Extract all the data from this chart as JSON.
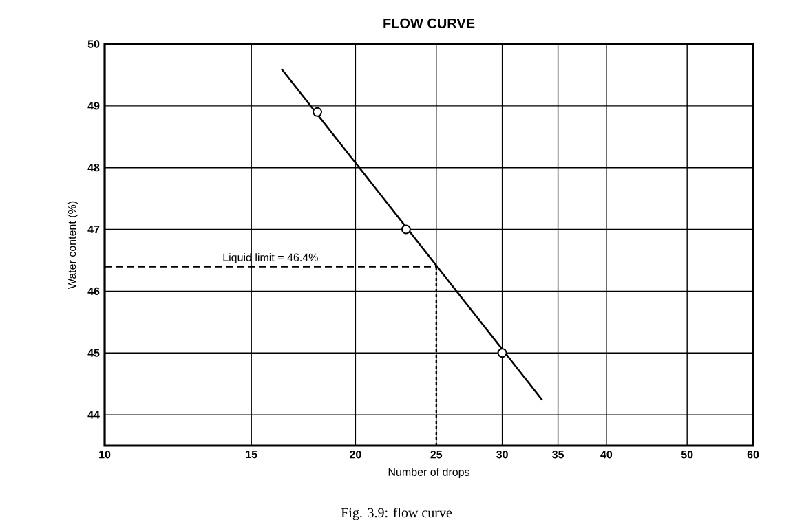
{
  "chart_data": {
    "type": "scatter",
    "title": "FLOW CURVE",
    "xlabel": "Number of drops",
    "ylabel": "Water content (%)",
    "log": "x",
    "xlim": [
      10,
      60
    ],
    "xticks": [
      10,
      15,
      20,
      25,
      30,
      35,
      40,
      50,
      60
    ],
    "ylim": [
      43.5,
      50
    ],
    "yticks": [
      44,
      45,
      46,
      47,
      48,
      49,
      50
    ],
    "grid": true,
    "series": [
      {
        "type": "line",
        "x": [
          16.3,
          33.5
        ],
        "values": [
          49.6,
          44.24
        ],
        "color": "#000000"
      },
      {
        "x": [
          18,
          23,
          30
        ],
        "values": [
          48.9,
          47,
          45
        ],
        "color": "#000000",
        "marker": "circle"
      }
    ],
    "ref_lines": [
      {
        "axis": "y",
        "value": 46.4,
        "label": "Liquid limit = 46.4%",
        "line_style": "dashed"
      },
      {
        "axis": "x",
        "value": 25,
        "line_style": "dotted"
      }
    ],
    "annotations": [
      "Fig. 3.9: flow curve"
    ]
  }
}
